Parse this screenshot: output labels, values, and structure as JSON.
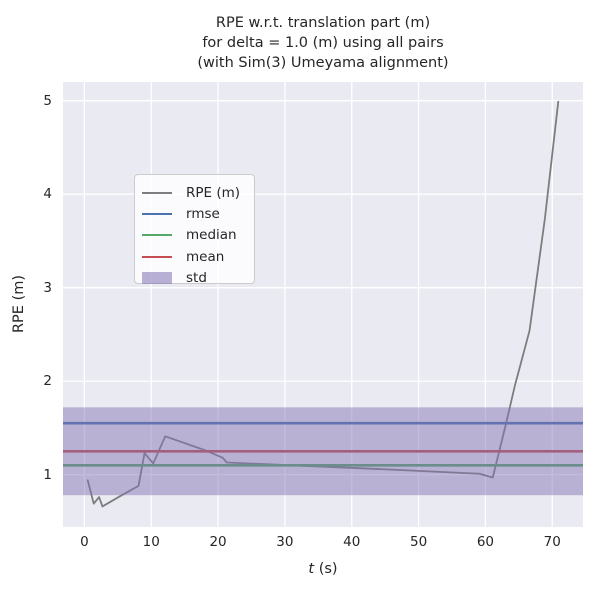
{
  "title": {
    "line1": "RPE w.r.t. translation part (m)",
    "line2": "for delta = 1.0 (m) using all pairs",
    "line3": "(with Sim(3) Umeyama alignment)"
  },
  "axes": {
    "xlabel_italic": "t",
    "xlabel_rest": " (s)",
    "ylabel": "RPE (m)"
  },
  "colors": {
    "figure_bg": "#ffffff",
    "plot_bg": "#eaeaf2",
    "grid": "#ffffff",
    "text": "#262626",
    "rpe_line": "#7d7d7d",
    "rmse_line": "#4c72b0",
    "median_line": "#55a868",
    "mean_line": "#c44e52",
    "std_band": "#8172b2"
  },
  "legend": [
    {
      "label": "RPE (m)",
      "swatch": "line",
      "color": "#7d7d7d"
    },
    {
      "label": "rmse",
      "swatch": "line",
      "color": "#4c72b0"
    },
    {
      "label": "median",
      "swatch": "line",
      "color": "#55a868"
    },
    {
      "label": "mean",
      "swatch": "line",
      "color": "#c44e52"
    },
    {
      "label": "std",
      "swatch": "patch",
      "color": "rgba(129,114,178,0.55)"
    }
  ],
  "chart_data": {
    "type": "line",
    "title": "RPE w.r.t. translation part (m) for delta = 1.0 (m) using all pairs (with Sim(3) Umeyama alignment)",
    "xlabel": "t (s)",
    "ylabel": "RPE (m)",
    "xlim": [
      -3.2,
      74.6
    ],
    "ylim": [
      0.44,
      5.2
    ],
    "xticks": [
      0,
      10,
      20,
      30,
      40,
      50,
      60,
      70
    ],
    "yticks": [
      1,
      2,
      3,
      4,
      5
    ],
    "grid": true,
    "legend_position": "upper left",
    "series": [
      {
        "name": "RPE (m)",
        "kind": "line",
        "color": "#7d7d7d",
        "width": 1.8,
        "x": [
          0.5,
          1.4,
          2.2,
          2.7,
          5.6,
          8.1,
          9.0,
          10.3,
          12.1,
          18.1,
          20.7,
          21.3,
          47.2,
          59.1,
          61.1,
          63.1,
          64.4,
          66.6,
          68.9,
          70.9
        ],
        "y": [
          0.94,
          0.69,
          0.76,
          0.66,
          0.78,
          0.88,
          1.23,
          1.12,
          1.41,
          1.26,
          1.18,
          1.13,
          1.05,
          1.01,
          0.97,
          1.55,
          1.95,
          2.54,
          3.74,
          4.99
        ]
      },
      {
        "name": "rmse",
        "kind": "hline",
        "value": 1.55,
        "color": "#4c72b0",
        "width": 2.6
      },
      {
        "name": "median",
        "kind": "hline",
        "value": 1.1,
        "color": "#55a868",
        "width": 2.6
      },
      {
        "name": "mean",
        "kind": "hline",
        "value": 1.25,
        "color": "#c44e52",
        "width": 2.6
      },
      {
        "name": "std",
        "kind": "band",
        "range": [
          0.78,
          1.72
        ],
        "color": "#8172b2",
        "alpha": 0.48
      }
    ]
  }
}
